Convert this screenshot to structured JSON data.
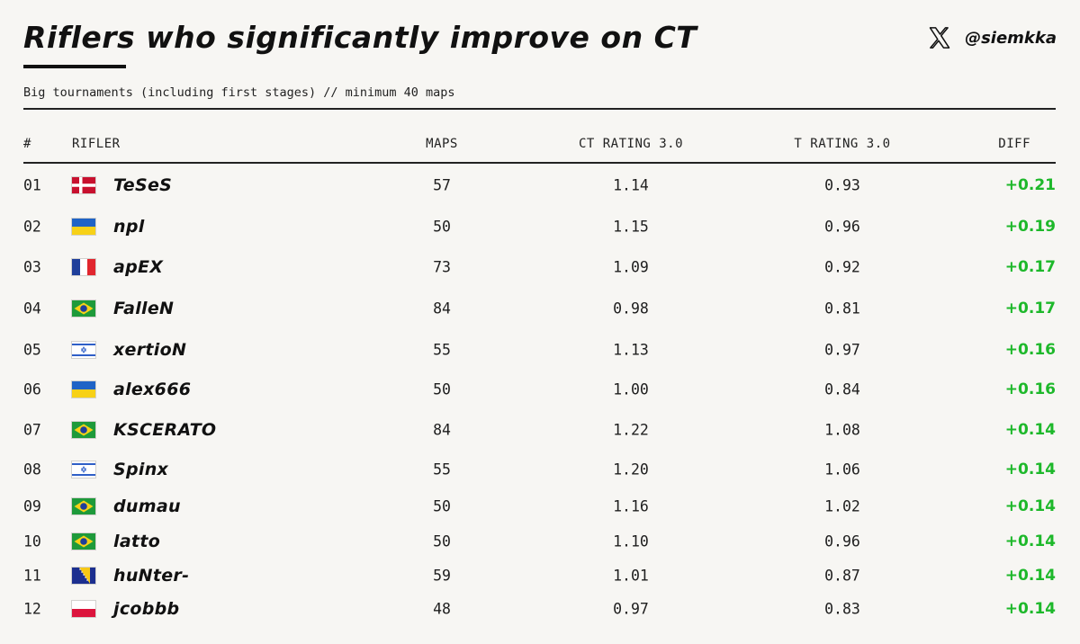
{
  "header": {
    "title": "Riflers who significantly improve on CT",
    "subtitle": "Big tournaments (including first stages) // minimum 40 maps",
    "handle": "@siemkka",
    "brand_icon": "x-logo-icon"
  },
  "colors": {
    "background": "#f7f6f3",
    "text": "#1a1a1a",
    "diff_positive": "#1db82a"
  },
  "chart_data": {
    "type": "table",
    "columns": [
      "#",
      "RIFLER",
      "MAPS",
      "CT RATING 3.0",
      "T RATING 3.0",
      "DIFF"
    ],
    "rows": [
      {
        "rank": "01",
        "flag": "denmark",
        "player": "TeSeS",
        "maps": "57",
        "ct": "1.14",
        "t": "0.93",
        "diff": "+0.21"
      },
      {
        "rank": "02",
        "flag": "ukraine",
        "player": "npl",
        "maps": "50",
        "ct": "1.15",
        "t": "0.96",
        "diff": "+0.19"
      },
      {
        "rank": "03",
        "flag": "france",
        "player": "apEX",
        "maps": "73",
        "ct": "1.09",
        "t": "0.92",
        "diff": "+0.17"
      },
      {
        "rank": "04",
        "flag": "brazil",
        "player": "FalleN",
        "maps": "84",
        "ct": "0.98",
        "t": "0.81",
        "diff": "+0.17"
      },
      {
        "rank": "05",
        "flag": "israel",
        "player": "xertioN",
        "maps": "55",
        "ct": "1.13",
        "t": "0.97",
        "diff": "+0.16"
      },
      {
        "rank": "06",
        "flag": "ukraine",
        "player": "alex666",
        "maps": "50",
        "ct": "1.00",
        "t": "0.84",
        "diff": "+0.16"
      },
      {
        "rank": "07",
        "flag": "brazil",
        "player": "KSCERATO",
        "maps": "84",
        "ct": "1.22",
        "t": "1.08",
        "diff": "+0.14"
      },
      {
        "rank": "08",
        "flag": "israel",
        "player": "Spinx",
        "maps": "55",
        "ct": "1.20",
        "t": "1.06",
        "diff": "+0.14"
      },
      {
        "rank": "09",
        "flag": "brazil",
        "player": "dumau",
        "maps": "50",
        "ct": "1.16",
        "t": "1.02",
        "diff": "+0.14"
      },
      {
        "rank": "10",
        "flag": "brazil",
        "player": "latto",
        "maps": "50",
        "ct": "1.10",
        "t": "0.96",
        "diff": "+0.14"
      },
      {
        "rank": "11",
        "flag": "bosnia",
        "player": "huNter-",
        "maps": "59",
        "ct": "1.01",
        "t": "0.87",
        "diff": "+0.14"
      },
      {
        "rank": "12",
        "flag": "poland",
        "player": "jcobbb",
        "maps": "48",
        "ct": "0.97",
        "t": "0.83",
        "diff": "+0.14"
      }
    ]
  }
}
